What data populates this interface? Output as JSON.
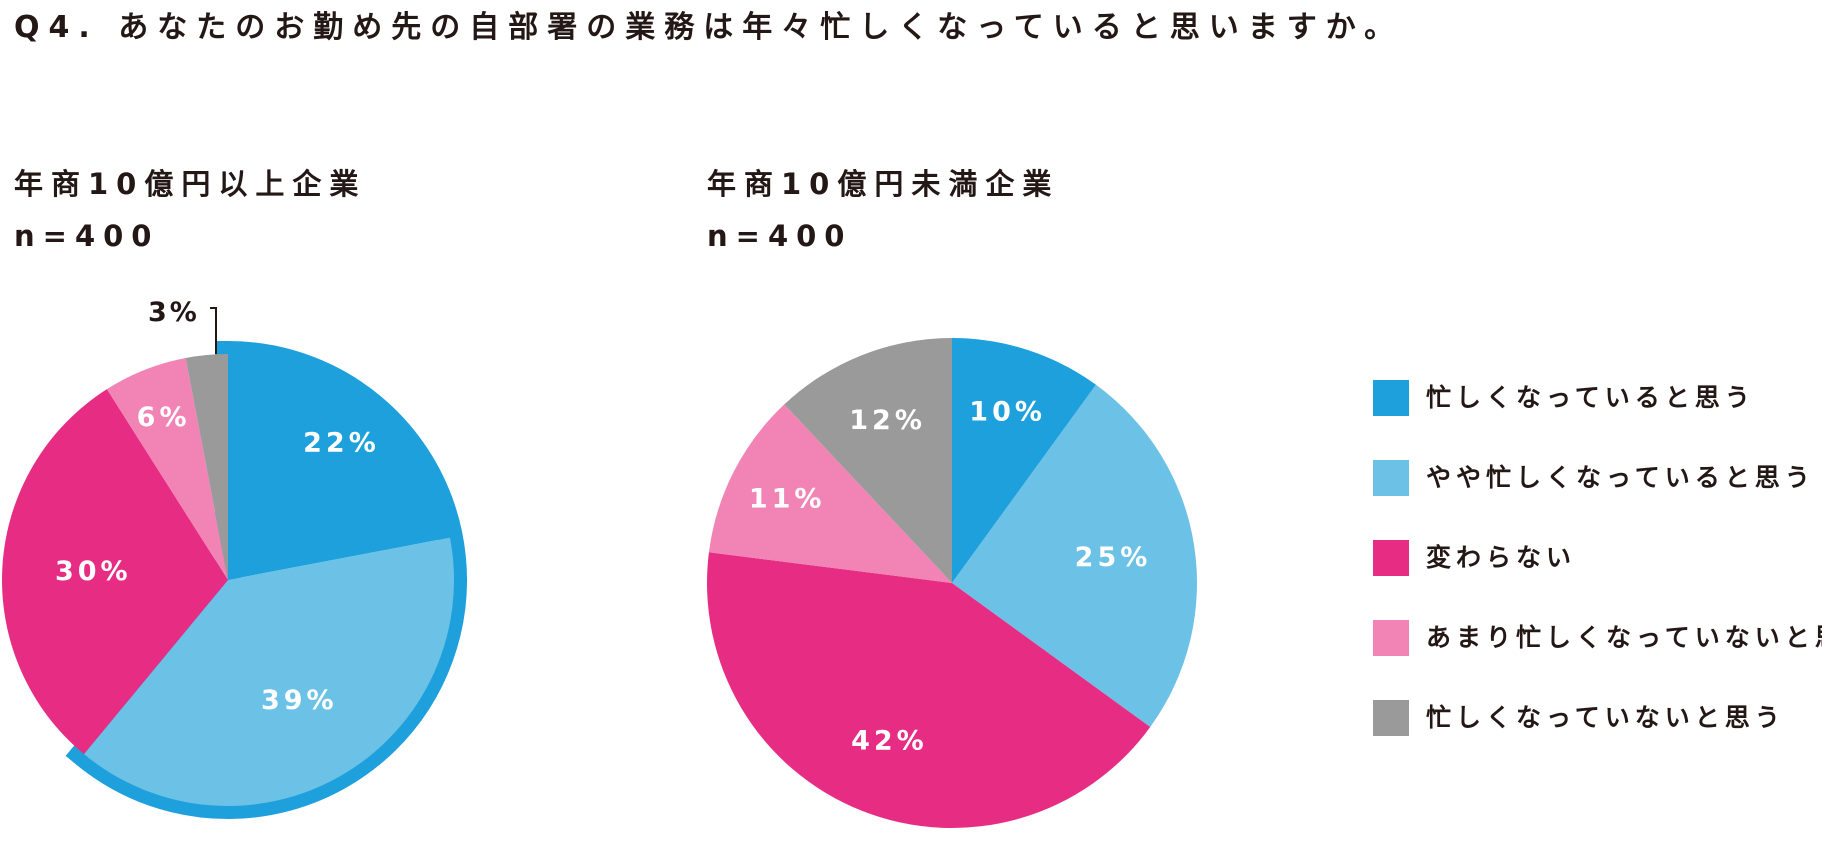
{
  "question": "Q4. あなたのお勤め先の自部署の業務は年々忙しくなっていると思いますか。",
  "legend": [
    {
      "label": "忙しくなっていると思う",
      "color": "#1ea0dc"
    },
    {
      "label": "やや忙しくなっていると思う",
      "color": "#6bc1e6"
    },
    {
      "label": "変わらない",
      "color": "#e72d83"
    },
    {
      "label": "あまり忙しくなっていないと思う",
      "color": "#f184b5"
    },
    {
      "label": "忙しくなっていないと思う",
      "color": "#9a9a9a"
    }
  ],
  "chart_data": [
    {
      "type": "pie",
      "title_lines": [
        "年商10億円以上企業",
        "n=400"
      ],
      "categories": [
        "忙しくなっていると思う",
        "やや忙しくなっていると思う",
        "変わらない",
        "あまり忙しくなっていないと思う",
        "忙しくなっていないと思う"
      ],
      "values": [
        22,
        39,
        30,
        6,
        3
      ],
      "value_labels": [
        "22%",
        "39%",
        "30%",
        "6%",
        "3%"
      ],
      "highlighted": [
        0,
        1
      ]
    },
    {
      "type": "pie",
      "title_lines": [
        "年商10億円未満企業",
        "n=400"
      ],
      "categories": [
        "忙しくなっていると思う",
        "やや忙しくなっていると思う",
        "変わらない",
        "あまり忙しくなっていないと思う",
        "忙しくなっていないと思う"
      ],
      "values": [
        10,
        25,
        42,
        11,
        12
      ],
      "value_labels": [
        "10%",
        "25%",
        "42%",
        "11%",
        "12%"
      ],
      "legend_placement": "right"
    }
  ]
}
